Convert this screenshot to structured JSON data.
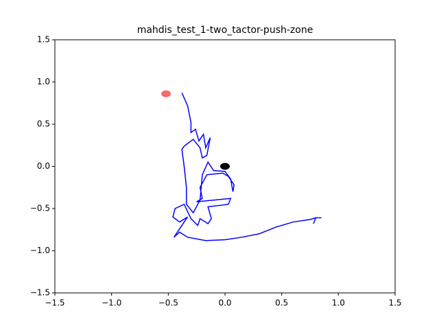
{
  "chart_data": {
    "type": "line",
    "title": "mahdis_test_1-two_tactor-push-zone",
    "xlim": [
      -1.5,
      1.5
    ],
    "ylim": [
      -1.5,
      1.5
    ],
    "xticks": [
      {
        "value": -1.5,
        "label": "−1.5"
      },
      {
        "value": -1,
        "label": "−1.0"
      },
      {
        "value": -0.5,
        "label": "−0.5"
      },
      {
        "value": 0,
        "label": "0.0"
      },
      0.5,
      {
        "value": 1,
        "label": "1.0"
      },
      1.5
    ],
    "yticks": [
      {
        "value": -1.5,
        "label": "−1.5"
      },
      {
        "value": -1,
        "label": "−1.0"
      },
      {
        "value": -0.5,
        "label": "−0.5"
      },
      {
        "value": 0,
        "label": "0.0"
      },
      0.5,
      {
        "value": 1,
        "label": "1.0"
      },
      1.5
    ],
    "series": [
      {
        "color": "#0000ff",
        "x": [
          -0.38,
          -0.33,
          -0.3,
          -0.3,
          -0.26,
          -0.23,
          -0.19,
          -0.17,
          -0.13,
          -0.16,
          -0.2,
          -0.22,
          -0.28,
          -0.36,
          -0.38,
          -0.36,
          -0.34,
          -0.34,
          -0.28,
          -0.22,
          -0.2,
          -0.15,
          -0.1,
          0.0,
          0.05,
          0.07,
          0.08,
          0.03,
          -0.02,
          -0.16,
          -0.22,
          -0.2,
          -0.25,
          -0.1,
          0.05,
          0.03,
          -0.15,
          -0.12,
          -0.15,
          -0.22,
          -0.24,
          -0.3,
          -0.36,
          -0.44,
          -0.46,
          -0.4,
          -0.33,
          -0.42,
          -0.45,
          -0.4,
          -0.33,
          -0.17,
          0.0,
          0.15,
          0.3,
          0.45,
          0.6,
          0.75,
          0.8,
          0.78,
          0.8,
          0.85
        ],
        "y": [
          0.87,
          0.72,
          0.52,
          0.4,
          0.44,
          0.3,
          0.38,
          0.22,
          0.34,
          0.13,
          0.1,
          0.22,
          0.32,
          0.24,
          0.2,
          0.0,
          -0.25,
          -0.45,
          -0.55,
          -0.4,
          -0.1,
          0.05,
          -0.05,
          -0.06,
          -0.15,
          -0.3,
          -0.22,
          -0.12,
          -0.08,
          -0.1,
          -0.25,
          -0.38,
          -0.42,
          -0.4,
          -0.38,
          -0.45,
          -0.48,
          -0.62,
          -0.68,
          -0.62,
          -0.7,
          -0.62,
          -0.45,
          -0.5,
          -0.6,
          -0.66,
          -0.6,
          -0.78,
          -0.84,
          -0.78,
          -0.84,
          -0.88,
          -0.87,
          -0.84,
          -0.8,
          -0.72,
          -0.66,
          -0.63,
          -0.61,
          -0.68,
          -0.61,
          -0.61
        ]
      }
    ],
    "markers": [
      {
        "x": -0.52,
        "y": 0.86,
        "color": "#f26b6b"
      },
      {
        "x": 0.0,
        "y": 0.0,
        "color": "#000000"
      }
    ]
  }
}
